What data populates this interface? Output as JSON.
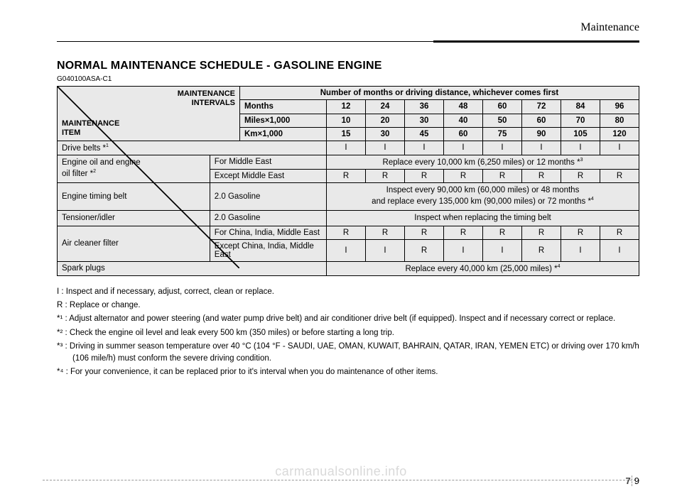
{
  "section": "Maintenance",
  "title": "NORMAL MAINTENANCE SCHEDULE - GASOLINE ENGINE",
  "doc_ref": "G040100ASA-C1",
  "header_corner": {
    "top": "MAINTENANCE\nINTERVALS",
    "bottom": "MAINTENANCE\nITEM"
  },
  "interval_header": "Number of months or driving distance, whichever comes first",
  "interval_rows": [
    {
      "label": "Months",
      "values": [
        "12",
        "24",
        "36",
        "48",
        "60",
        "72",
        "84",
        "96"
      ]
    },
    {
      "label": "Miles×1,000",
      "values": [
        "10",
        "20",
        "30",
        "40",
        "50",
        "60",
        "70",
        "80"
      ]
    },
    {
      "label": "Km×1,000",
      "values": [
        "15",
        "30",
        "45",
        "60",
        "75",
        "90",
        "105",
        "120"
      ]
    }
  ],
  "rows": [
    {
      "type": "values",
      "item_html": "Drive belts *<sup class='small'>1</sup>",
      "item_colspan": 2,
      "values": [
        "I",
        "I",
        "I",
        "I",
        "I",
        "I",
        "I",
        "I"
      ]
    },
    {
      "type": "group2",
      "left_html": "Engine oil and engine<br>oil filter *<sup class='small'>2</sup>",
      "subrows": [
        {
          "sub": "For Middle East",
          "span_html": "Replace every 10,000 km (6,250 miles) or 12 months *<sup class='small'>3</sup>"
        },
        {
          "sub": "Except Middle East",
          "values": [
            "R",
            "R",
            "R",
            "R",
            "R",
            "R",
            "R",
            "R"
          ]
        }
      ]
    },
    {
      "type": "span",
      "item": "Engine timing belt",
      "sub": "2.0 Gasoline",
      "span_html": "Inspect every 90,000 km (60,000 miles) or 48 months<br>and replace every 135,000 km (90,000 miles) or 72 months *<sup class='small'>4</sup>"
    },
    {
      "type": "span",
      "item": "Tensioner/idler",
      "sub": "2.0 Gasoline",
      "span_html": "Inspect when replacing the timing belt"
    },
    {
      "type": "group2",
      "left_html": "Air cleaner filter",
      "subrows": [
        {
          "sub": "For China, India, Middle East",
          "values": [
            "R",
            "R",
            "R",
            "R",
            "R",
            "R",
            "R",
            "R"
          ]
        },
        {
          "sub": "Except China, India, Middle East",
          "values": [
            "I",
            "I",
            "R",
            "I",
            "I",
            "R",
            "I",
            "I"
          ]
        }
      ]
    },
    {
      "type": "span_full",
      "item": "Spark plugs",
      "span_html": "Replace every 40,000 km (25,000 miles) *<sup class='small'>4</sup>"
    }
  ],
  "notes": [
    "I   : Inspect and if necessary, adjust, correct, clean or replace.",
    "R  : Replace or change.",
    "*¹ : Adjust alternator and power steering (and water pump drive belt) and air conditioner drive belt (if equipped). Inspect and if necessary correct or replace.",
    "*² : Check the engine oil level and leak every 500 km (350 miles) or before starting a long trip.",
    "*³ : Driving in summer season temperature over 40 °C (104 °F - SAUDI, UAE, OMAN, KUWAIT, BAHRAIN, QATAR, IRAN, YEMEN ETC) or driving over 170 km/h (106 mile/h) must conform the severe driving condition.",
    "*⁴ : For your convenience, it can be replaced prior to it's interval when you do maintenance of other items."
  ],
  "page_chapter": "7",
  "page_number": "9",
  "watermark": "carmanualsonline.info",
  "colors": {
    "cell_bg": "#e9e9e9",
    "border": "#000000",
    "text": "#000000",
    "watermark": "#d9d9d9"
  }
}
